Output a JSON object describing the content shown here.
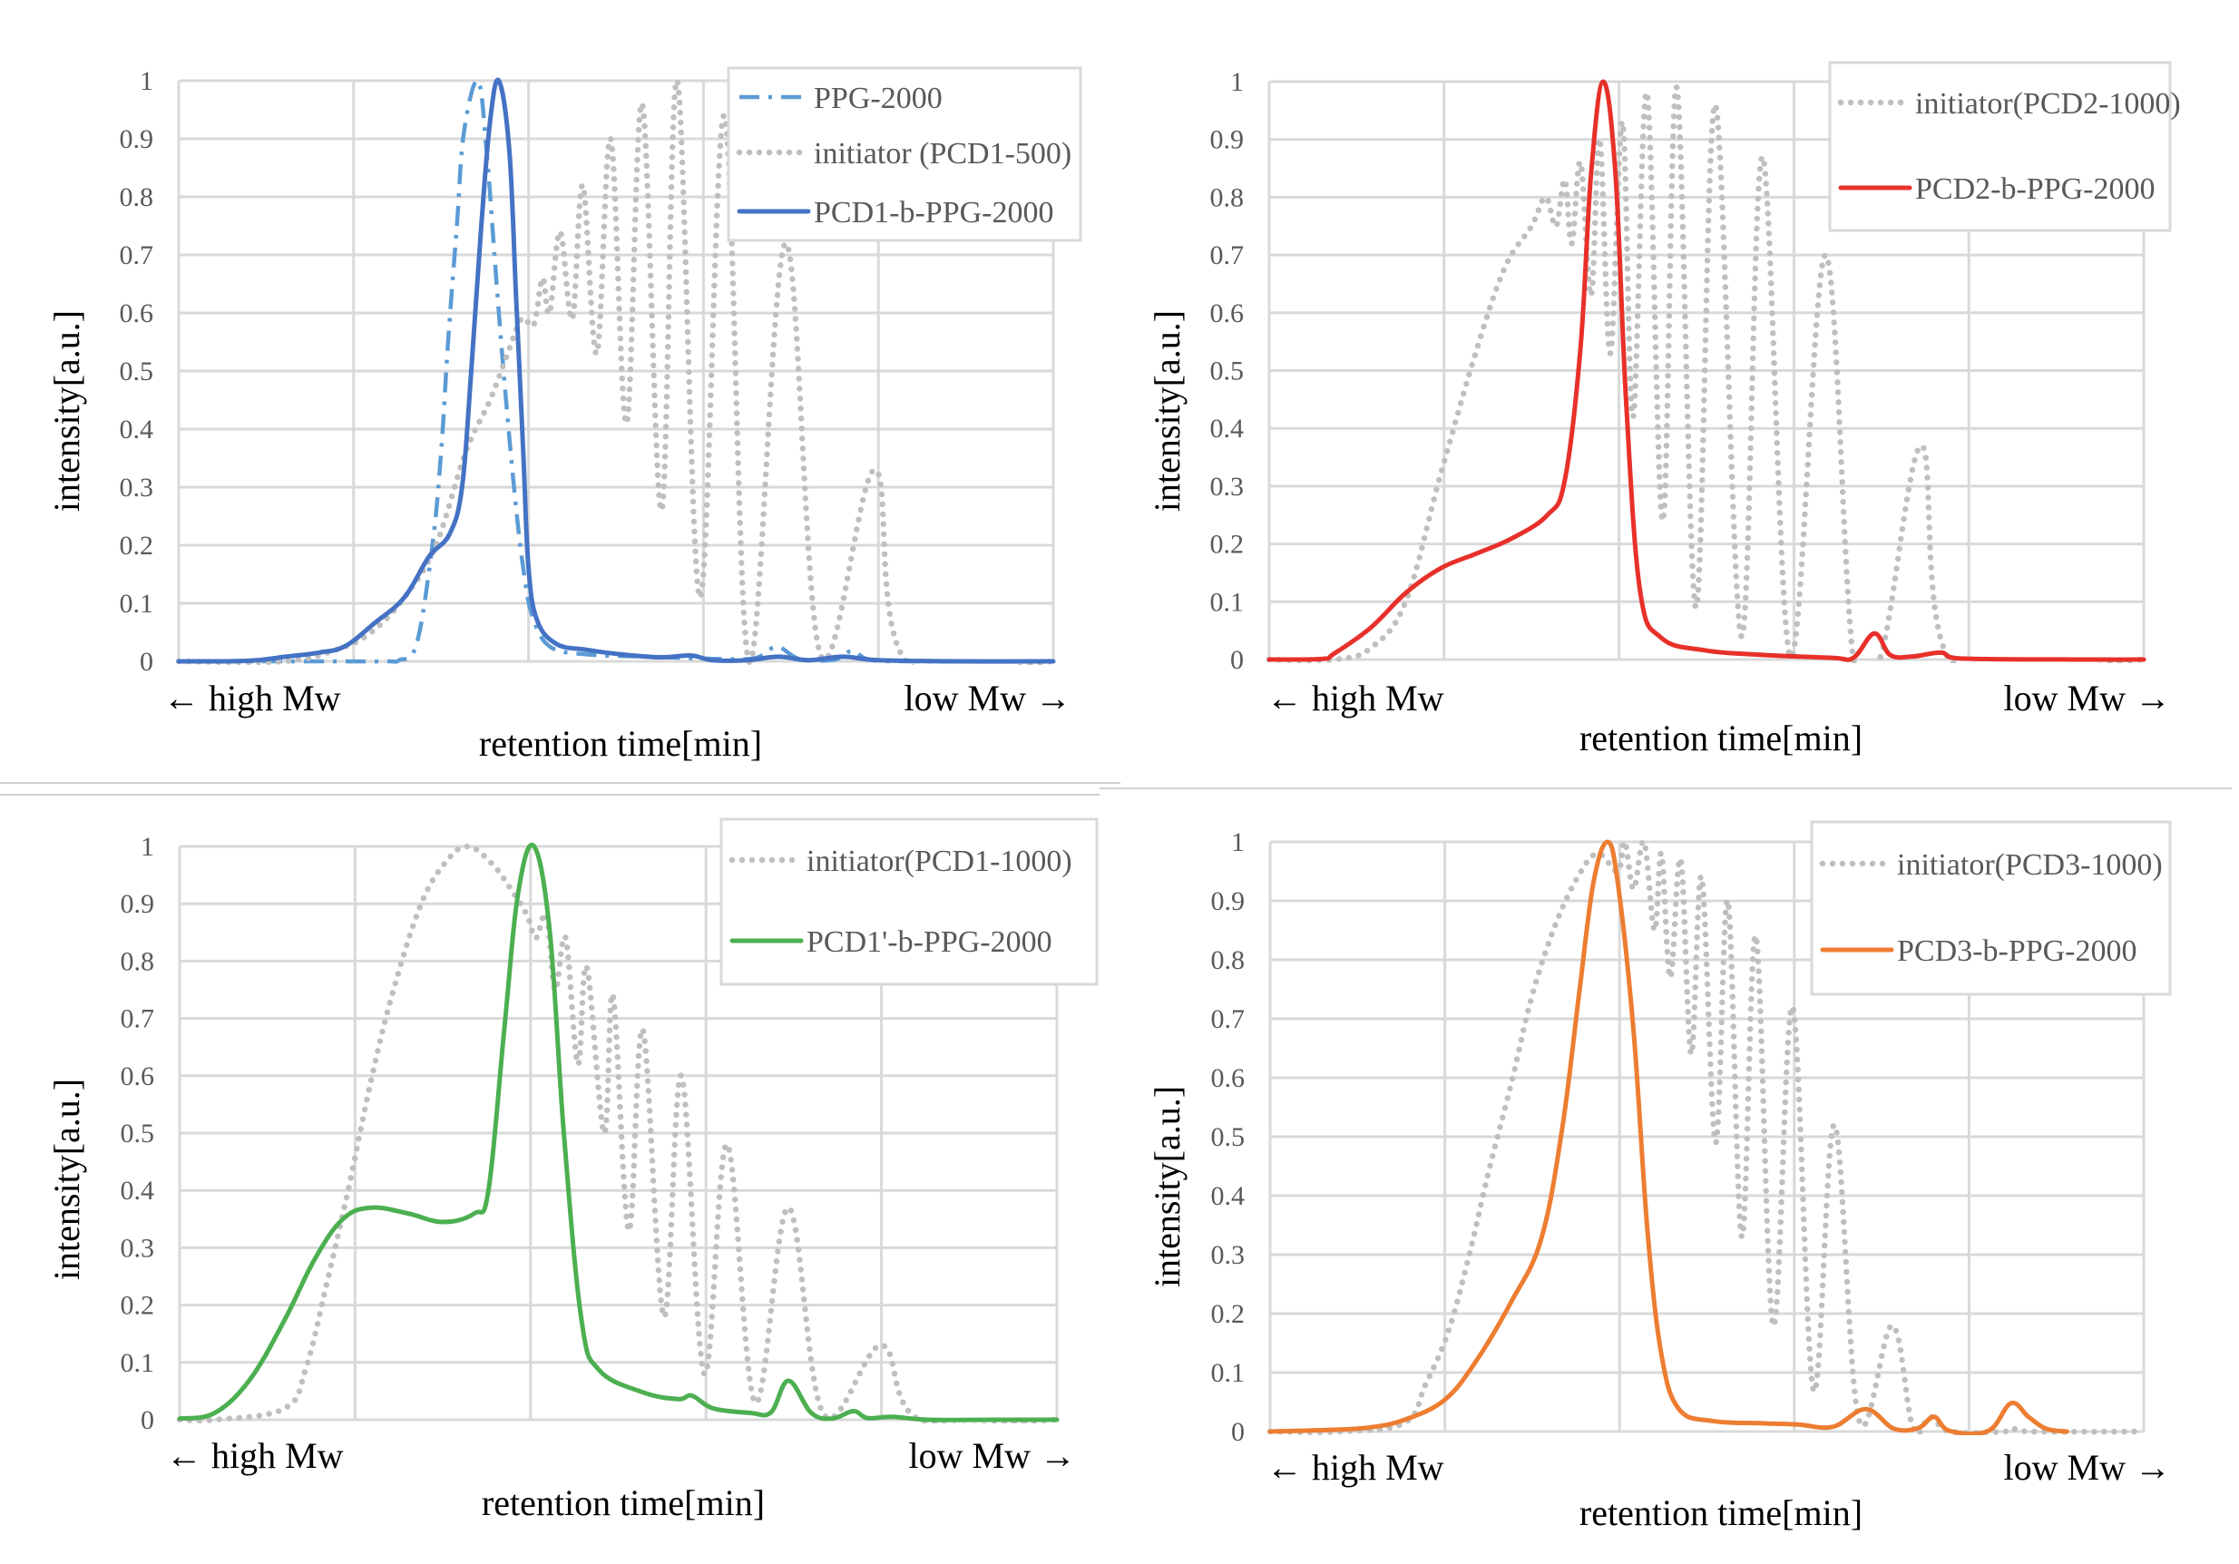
{
  "figure": {
    "separator": true
  },
  "chart_data": [
    {
      "type": "line",
      "id": "top-left",
      "title": "",
      "ylabel": "intensity[a.u.]",
      "xlabel": "retention time[min]",
      "x_left_label": "← high Mw",
      "x_right_label": "low Mw →",
      "xlim": [
        0,
        5
      ],
      "ylim": [
        0,
        1
      ],
      "yticks": [
        "0",
        "0.1",
        "0.2",
        "0.3",
        "0.4",
        "0.5",
        "0.6",
        "0.7",
        "0.8",
        "0.9",
        "1"
      ],
      "grid": true,
      "legend_position": "top-right",
      "series": [
        {
          "name": "PPG-2000",
          "style": "dashdot",
          "color": "#5B9BD5",
          "x": [
            0,
            0.8,
            1.2,
            1.26,
            1.36,
            1.45,
            1.5,
            1.54,
            1.59,
            1.63,
            1.71,
            1.76,
            1.81,
            1.86,
            1.92,
            1.97,
            2.02,
            2.12,
            2.33,
            2.7,
            3.1,
            3.3,
            3.42,
            3.55,
            3.75,
            3.85,
            3.95,
            4.2,
            5
          ],
          "y": [
            0,
            0,
            0,
            0.002,
            0.03,
            0.2,
            0.36,
            0.55,
            0.75,
            0.91,
            1.0,
            0.88,
            0.68,
            0.49,
            0.29,
            0.16,
            0.08,
            0.026,
            0.012,
            0.008,
            0.004,
            0.006,
            0.025,
            0.004,
            0.003,
            0.018,
            0.003,
            0.0,
            0
          ]
        },
        {
          "name": "initiator (PCD1-500)",
          "style": "dotted",
          "color": "#BFBFBF",
          "x": [
            0,
            0.6,
            0.9,
            1.1,
            1.29,
            1.47,
            1.64,
            1.78,
            1.88,
            1.96,
            2.03,
            2.08,
            2.12,
            2.18,
            2.25,
            2.31,
            2.39,
            2.47,
            2.56,
            2.65,
            2.76,
            2.85,
            2.98,
            3.12,
            3.26,
            3.47,
            3.67,
            3.98,
            4.16,
            5
          ],
          "y": [
            0,
            0,
            0.02,
            0.05,
            0.11,
            0.2,
            0.36,
            0.45,
            0.53,
            0.59,
            0.58,
            0.66,
            0.6,
            0.74,
            0.59,
            0.82,
            0.53,
            0.9,
            0.41,
            0.96,
            0.26,
            1.0,
            0.11,
            0.94,
            0.0,
            0.72,
            0.01,
            0.33,
            0.0,
            0
          ]
        },
        {
          "name": "PCD1-b-PPG-2000",
          "style": "solid",
          "color": "#4472C4",
          "x": [
            0,
            0.4,
            0.61,
            0.8,
            0.95,
            1.12,
            1.29,
            1.43,
            1.55,
            1.62,
            1.67,
            1.73,
            1.78,
            1.83,
            1.89,
            1.93,
            1.97,
            2.0,
            2.05,
            2.16,
            2.33,
            2.5,
            2.75,
            2.93,
            3.05,
            3.25,
            3.43,
            3.6,
            3.8,
            4.0,
            4.5,
            5
          ],
          "y": [
            0,
            0.001,
            0.008,
            0.015,
            0.026,
            0.066,
            0.11,
            0.18,
            0.22,
            0.3,
            0.49,
            0.75,
            0.93,
            1.0,
            0.88,
            0.62,
            0.36,
            0.16,
            0.07,
            0.03,
            0.02,
            0.013,
            0.007,
            0.01,
            0.002,
            0.002,
            0.008,
            0.002,
            0.008,
            0.002,
            0.0,
            0
          ]
        }
      ]
    },
    {
      "type": "line",
      "id": "top-right",
      "title": "",
      "ylabel": "intensity[a.u.]",
      "xlabel": "retention time[min]",
      "x_left_label": "← high Mw",
      "x_right_label": "low Mw →",
      "xlim": [
        0,
        5
      ],
      "ylim": [
        0,
        1
      ],
      "yticks": [
        "0",
        "0.1",
        "0.2",
        "0.3",
        "0.4",
        "0.5",
        "0.6",
        "0.7",
        "0.8",
        "0.9",
        "1"
      ],
      "grid": true,
      "legend_position": "top-right",
      "series": [
        {
          "name": "initiator(PCD2-1000)",
          "style": "dotted",
          "color": "#BFBFBF",
          "x": [
            0,
            0.37,
            0.58,
            0.78,
            0.98,
            1.19,
            1.35,
            1.5,
            1.58,
            1.64,
            1.69,
            1.73,
            1.78,
            1.84,
            1.89,
            1.95,
            2.02,
            2.08,
            2.16,
            2.25,
            2.33,
            2.44,
            2.55,
            2.7,
            2.82,
            2.98,
            3.18,
            3.34,
            3.5,
            3.73,
            3.89,
            5
          ],
          "y": [
            0,
            0,
            0.02,
            0.1,
            0.32,
            0.54,
            0.68,
            0.75,
            0.8,
            0.75,
            0.83,
            0.72,
            0.86,
            0.63,
            0.9,
            0.53,
            0.93,
            0.42,
            0.98,
            0.24,
            0.99,
            0.09,
            0.96,
            0.04,
            0.87,
            0.005,
            0.7,
            0.0,
            0.01,
            0.37,
            0.0,
            0
          ]
        },
        {
          "name": "PCD2-b-PPG-2000",
          "style": "solid",
          "color": "#E8302A",
          "x": [
            0,
            0.3,
            0.37,
            0.58,
            0.78,
            0.98,
            1.19,
            1.39,
            1.59,
            1.69,
            1.78,
            1.84,
            1.91,
            1.98,
            2.04,
            2.12,
            2.24,
            2.49,
            2.82,
            3.22,
            3.34,
            3.46,
            3.55,
            3.67,
            3.84,
            3.94,
            4.7,
            5
          ],
          "y": [
            0,
            0.001,
            0.01,
            0.055,
            0.115,
            0.158,
            0.184,
            0.21,
            0.25,
            0.31,
            0.54,
            0.84,
            1.0,
            0.84,
            0.45,
            0.12,
            0.038,
            0.016,
            0.008,
            0.003,
            0.003,
            0.045,
            0.008,
            0.005,
            0.012,
            0.002,
            0.0,
            0
          ]
        }
      ]
    },
    {
      "type": "line",
      "id": "bottom-left",
      "title": "",
      "ylabel": "intensity[a.u.]",
      "xlabel": "retention time[min]",
      "x_left_label": "← high Mw",
      "x_right_label": "low Mw →",
      "xlim": [
        0,
        5
      ],
      "ylim": [
        0,
        1
      ],
      "yticks": [
        "0",
        "0.1",
        "0.2",
        "0.3",
        "0.4",
        "0.5",
        "0.6",
        "0.7",
        "0.8",
        "0.9",
        "1"
      ],
      "grid": true,
      "legend_position": "top-right",
      "series": [
        {
          "name": "initiator(PCD1-1000)",
          "style": "dotted",
          "color": "#BFBFBF",
          "x": [
            0,
            0.2,
            0.6,
            0.72,
            0.84,
            0.96,
            1.09,
            1.21,
            1.37,
            1.51,
            1.64,
            1.78,
            1.9,
            1.98,
            2.03,
            2.09,
            2.14,
            2.2,
            2.27,
            2.32,
            2.42,
            2.47,
            2.56,
            2.64,
            2.76,
            2.86,
            2.99,
            3.12,
            3.28,
            3.47,
            3.67,
            4.0,
            4.22,
            5
          ],
          "y": [
            0,
            0,
            0.02,
            0.09,
            0.24,
            0.4,
            0.59,
            0.74,
            0.895,
            0.97,
            1.0,
            0.97,
            0.92,
            0.88,
            0.84,
            0.88,
            0.75,
            0.84,
            0.62,
            0.79,
            0.5,
            0.74,
            0.33,
            0.68,
            0.18,
            0.6,
            0.08,
            0.48,
            0.03,
            0.37,
            0.01,
            0.13,
            0.0,
            0
          ]
        },
        {
          "name": "PCD1'-b-PPG-2000",
          "style": "solid",
          "color": "#4CAF50",
          "x": [
            0,
            0.2,
            0.4,
            0.6,
            0.77,
            0.93,
            1.09,
            1.3,
            1.5,
            1.68,
            1.76,
            1.85,
            1.93,
            2.02,
            2.11,
            2.19,
            2.29,
            2.39,
            2.64,
            2.84,
            2.92,
            3.04,
            3.25,
            3.37,
            3.47,
            3.6,
            3.72,
            3.84,
            3.92,
            4.06,
            4.27,
            4.63,
            5
          ],
          "y": [
            0.002,
            0.012,
            0.07,
            0.175,
            0.28,
            0.35,
            0.37,
            0.36,
            0.345,
            0.36,
            0.4,
            0.68,
            0.92,
            1.0,
            0.85,
            0.5,
            0.175,
            0.087,
            0.048,
            0.036,
            0.042,
            0.02,
            0.012,
            0.013,
            0.068,
            0.012,
            0.002,
            0.015,
            0.003,
            0.005,
            0.0,
            0.0,
            0
          ]
        }
      ]
    },
    {
      "type": "line",
      "id": "bottom-right",
      "title": "",
      "ylabel": "intensity[a.u.]",
      "xlabel": "retention time[min]",
      "x_left_label": "← high Mw",
      "x_right_label": "low Mw →",
      "xlim": [
        0,
        5
      ],
      "ylim": [
        0,
        1
      ],
      "yticks": [
        "0",
        "0.1",
        "0.2",
        "0.3",
        "0.4",
        "0.5",
        "0.6",
        "0.7",
        "0.8",
        "0.9",
        "1"
      ],
      "grid": true,
      "legend_position": "top-right",
      "series": [
        {
          "name": "initiator(PCD3-1000)",
          "style": "dotted",
          "color": "#BFBFBF",
          "x": [
            0,
            0.4,
            0.77,
            0.89,
            1.02,
            1.14,
            1.25,
            1.38,
            1.5,
            1.64,
            1.78,
            1.88,
            1.99,
            2.03,
            2.08,
            2.14,
            2.2,
            2.24,
            2.29,
            2.35,
            2.41,
            2.47,
            2.55,
            2.62,
            2.7,
            2.78,
            2.88,
            2.99,
            3.11,
            3.23,
            3.37,
            3.56,
            3.68,
            3.78,
            3.89,
            4.2,
            4.25,
            4.35,
            5
          ],
          "y": [
            0,
            0,
            0.015,
            0.08,
            0.17,
            0.3,
            0.44,
            0.59,
            0.74,
            0.865,
            0.95,
            0.98,
            0.95,
            1.0,
            0.92,
            1.0,
            0.85,
            0.98,
            0.77,
            0.97,
            0.64,
            0.94,
            0.49,
            0.9,
            0.33,
            0.84,
            0.18,
            0.72,
            0.07,
            0.52,
            0.02,
            0.18,
            0.005,
            0.025,
            0.0,
            0.0,
            0.005,
            0.0,
            0
          ]
        },
        {
          "name": "PCD3-b-PPG-2000",
          "style": "solid",
          "color": "#ED7D31",
          "x": [
            0,
            0.36,
            0.57,
            0.77,
            1.0,
            1.18,
            1.38,
            1.55,
            1.67,
            1.77,
            1.85,
            1.93,
            1.99,
            2.08,
            2.16,
            2.24,
            2.34,
            2.53,
            2.81,
            3.02,
            3.22,
            3.41,
            3.57,
            3.71,
            3.8,
            3.89,
            4.11,
            4.24,
            4.34,
            4.44,
            4.56
          ],
          "y": [
            0,
            0.003,
            0.007,
            0.02,
            0.054,
            0.12,
            0.22,
            0.325,
            0.51,
            0.746,
            0.93,
            1.0,
            0.93,
            0.68,
            0.34,
            0.13,
            0.038,
            0.018,
            0.014,
            0.012,
            0.008,
            0.038,
            0.005,
            0.006,
            0.025,
            0.001,
            0.001,
            0.048,
            0.025,
            0.005,
            0.0
          ]
        }
      ]
    }
  ]
}
